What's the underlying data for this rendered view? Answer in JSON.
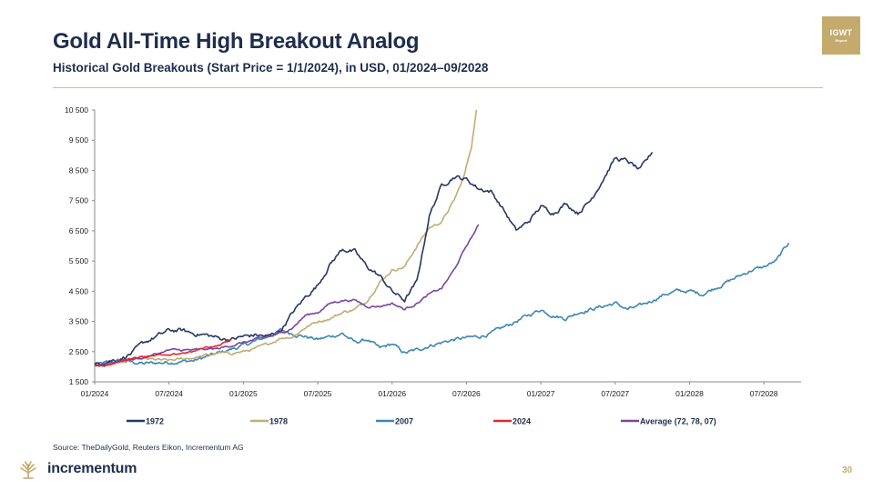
{
  "page": {
    "title": "Gold All-Time High Breakout Analog",
    "subtitle": "Historical Gold Breakouts (Start Price = 1/1/2024), in USD, 01/2024–09/2028",
    "source": "Source: TheDailyGold, Reuters Eikon, Incrementum AG",
    "badge_line1": "IGWT",
    "badge_line2": "Report",
    "logo_text": "incrementum",
    "page_number": "30"
  },
  "colors": {
    "navy": "#1f2d4d",
    "gold": "#c5aa6e",
    "s1972": "#253765",
    "s1978": "#c2ab74",
    "s2007": "#3b87b3",
    "s2024": "#e0292e",
    "average": "#7b45a0"
  },
  "chart_data": {
    "type": "line",
    "x_unit": "months since 01/2024",
    "xlim": [
      0,
      57
    ],
    "ylim": [
      1500,
      10500
    ],
    "yticks": [
      1500,
      2500,
      3500,
      4500,
      5500,
      6500,
      7500,
      8500,
      9500,
      10500
    ],
    "ytick_labels": [
      "1 500",
      "2 500",
      "3 500",
      "4 500",
      "5 500",
      "6 500",
      "7 500",
      "8 500",
      "9 500",
      "10 500"
    ],
    "xticks": [
      0,
      6,
      12,
      18,
      24,
      30,
      36,
      42,
      48,
      54
    ],
    "xtick_labels": [
      "01/2024",
      "07/2024",
      "01/2025",
      "07/2025",
      "01/2026",
      "07/2026",
      "01/2027",
      "07/2027",
      "01/2028",
      "07/2028"
    ],
    "legend_position": "bottom",
    "grid": false,
    "series": [
      {
        "name": "1972",
        "color": "#253765",
        "noise": 110,
        "points": [
          [
            0,
            2050
          ],
          [
            1,
            2200
          ],
          [
            2,
            2250
          ],
          [
            3,
            2450
          ],
          [
            4,
            2800
          ],
          [
            5,
            3000
          ],
          [
            6,
            3200
          ],
          [
            7,
            3200
          ],
          [
            8,
            3100
          ],
          [
            9,
            3050
          ],
          [
            10,
            2950
          ],
          [
            11,
            2900
          ],
          [
            12,
            3000
          ],
          [
            13,
            3050
          ],
          [
            14,
            3000
          ],
          [
            15,
            3200
          ],
          [
            16,
            3800
          ],
          [
            17,
            4300
          ],
          [
            18,
            4700
          ],
          [
            19,
            5400
          ],
          [
            20,
            5900
          ],
          [
            21,
            5800
          ],
          [
            22,
            5300
          ],
          [
            23,
            5000
          ],
          [
            24,
            4500
          ],
          [
            25,
            4200
          ],
          [
            26,
            4800
          ],
          [
            27,
            7000
          ],
          [
            28,
            8000
          ],
          [
            29,
            8300
          ],
          [
            30,
            8200
          ],
          [
            31,
            7900
          ],
          [
            32,
            7800
          ],
          [
            33,
            7200
          ],
          [
            34,
            6500
          ],
          [
            35,
            6800
          ],
          [
            36,
            7300
          ],
          [
            37,
            7100
          ],
          [
            38,
            7400
          ],
          [
            39,
            7100
          ],
          [
            40,
            7500
          ],
          [
            41,
            8200
          ],
          [
            42,
            8900
          ],
          [
            43,
            8800
          ],
          [
            44,
            8500
          ],
          [
            45,
            9100
          ]
        ]
      },
      {
        "name": "1978",
        "color": "#c2ab74",
        "noise": 70,
        "points": [
          [
            0,
            2050
          ],
          [
            2,
            2150
          ],
          [
            4,
            2250
          ],
          [
            6,
            2200
          ],
          [
            8,
            2300
          ],
          [
            10,
            2450
          ],
          [
            11,
            2450
          ],
          [
            12,
            2500
          ],
          [
            13,
            2600
          ],
          [
            14,
            2750
          ],
          [
            15,
            2950
          ],
          [
            16,
            3000
          ],
          [
            17,
            3300
          ],
          [
            18,
            3500
          ],
          [
            19,
            3600
          ],
          [
            20,
            3800
          ],
          [
            21,
            3900
          ],
          [
            22,
            4200
          ],
          [
            23,
            4800
          ],
          [
            24,
            5200
          ],
          [
            25,
            5300
          ],
          [
            26,
            6000
          ],
          [
            27,
            6600
          ],
          [
            28,
            6800
          ],
          [
            29,
            7500
          ],
          [
            29.8,
            8300
          ],
          [
            30.4,
            9300
          ],
          [
            30.8,
            10500
          ]
        ]
      },
      {
        "name": "2007",
        "color": "#3b87b3",
        "noise": 95,
        "points": [
          [
            0,
            2050
          ],
          [
            2,
            2200
          ],
          [
            4,
            2100
          ],
          [
            6,
            2150
          ],
          [
            8,
            2200
          ],
          [
            10,
            2450
          ],
          [
            12,
            2700
          ],
          [
            14,
            3000
          ],
          [
            15,
            3200
          ],
          [
            16,
            3100
          ],
          [
            18,
            2900
          ],
          [
            20,
            3100
          ],
          [
            21,
            2800
          ],
          [
            22,
            2900
          ],
          [
            23,
            2600
          ],
          [
            24,
            2750
          ],
          [
            25,
            2450
          ],
          [
            26,
            2550
          ],
          [
            27,
            2700
          ],
          [
            28,
            2800
          ],
          [
            29,
            2900
          ],
          [
            30,
            2950
          ],
          [
            31,
            3000
          ],
          [
            32,
            3100
          ],
          [
            33,
            3300
          ],
          [
            34,
            3500
          ],
          [
            35,
            3700
          ],
          [
            36,
            3900
          ],
          [
            37,
            3700
          ],
          [
            38,
            3600
          ],
          [
            39,
            3800
          ],
          [
            40,
            3900
          ],
          [
            41,
            4000
          ],
          [
            42,
            4100
          ],
          [
            43,
            3900
          ],
          [
            44,
            4000
          ],
          [
            45,
            4200
          ],
          [
            46,
            4400
          ],
          [
            47,
            4500
          ],
          [
            48,
            4500
          ],
          [
            49,
            4400
          ],
          [
            50,
            4600
          ],
          [
            51,
            4800
          ],
          [
            52,
            5000
          ],
          [
            53,
            5200
          ],
          [
            54,
            5300
          ],
          [
            55,
            5500
          ],
          [
            56,
            6100
          ]
        ]
      },
      {
        "name": "2024",
        "color": "#e0292e",
        "noise": 45,
        "points": [
          [
            0,
            2050
          ],
          [
            1,
            2050
          ],
          [
            2,
            2150
          ],
          [
            3,
            2300
          ],
          [
            4,
            2350
          ],
          [
            5,
            2400
          ],
          [
            6,
            2350
          ],
          [
            7,
            2450
          ],
          [
            8,
            2500
          ],
          [
            9,
            2650
          ],
          [
            10,
            2700
          ],
          [
            11,
            2900
          ]
        ]
      },
      {
        "name": "Average (72, 78, 07)",
        "color": "#7b45a0",
        "noise": 55,
        "points": [
          [
            0,
            2050
          ],
          [
            2,
            2200
          ],
          [
            4,
            2300
          ],
          [
            6,
            2550
          ],
          [
            8,
            2550
          ],
          [
            10,
            2600
          ],
          [
            12,
            2800
          ],
          [
            14,
            3000
          ],
          [
            15,
            3100
          ],
          [
            16,
            3300
          ],
          [
            17,
            3700
          ],
          [
            18,
            3800
          ],
          [
            19,
            4100
          ],
          [
            20,
            4200
          ],
          [
            21,
            4200
          ],
          [
            22,
            4000
          ],
          [
            23,
            4000
          ],
          [
            24,
            4100
          ],
          [
            25,
            3900
          ],
          [
            26,
            4100
          ],
          [
            27,
            4400
          ],
          [
            28,
            4600
          ],
          [
            29,
            5200
          ],
          [
            30,
            6000
          ],
          [
            31,
            6700
          ]
        ]
      }
    ]
  }
}
